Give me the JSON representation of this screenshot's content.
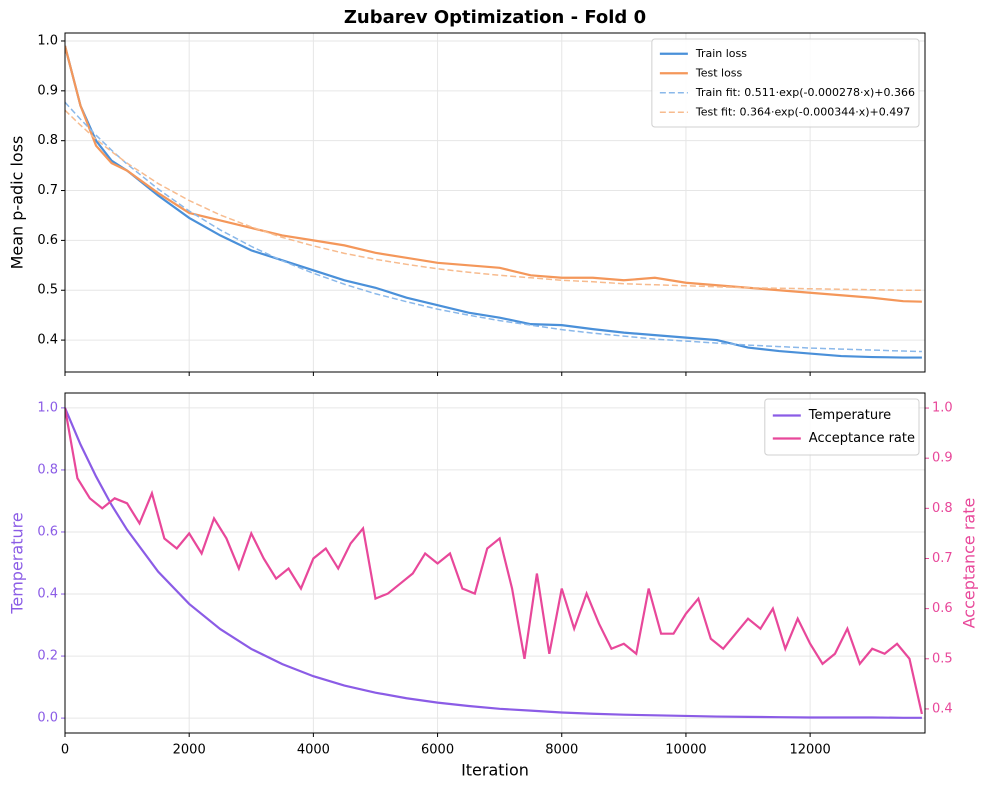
{
  "chart_data": [
    {
      "type": "line",
      "title": "Zubarev Optimization - Fold 0",
      "ylabel": "Mean p-adic loss",
      "x": [
        0,
        250,
        500,
        750,
        1000,
        1500,
        2000,
        2500,
        3000,
        3500,
        4000,
        4500,
        5000,
        5500,
        6000,
        6500,
        7000,
        7500,
        8000,
        8500,
        9000,
        9500,
        10000,
        10500,
        11000,
        11500,
        12000,
        12500,
        13000,
        13500,
        13800
      ],
      "series": [
        {
          "name": "Train loss",
          "color": "#4a90d9",
          "style": "solid",
          "values": [
            0.99,
            0.87,
            0.8,
            0.76,
            0.74,
            0.69,
            0.645,
            0.61,
            0.58,
            0.56,
            0.54,
            0.52,
            0.505,
            0.485,
            0.47,
            0.455,
            0.445,
            0.432,
            0.43,
            0.422,
            0.415,
            0.41,
            0.405,
            0.4,
            0.385,
            0.378,
            0.373,
            0.368,
            0.366,
            0.365,
            0.365
          ]
        },
        {
          "name": "Test loss",
          "color": "#f4975a",
          "style": "solid",
          "values": [
            0.99,
            0.87,
            0.79,
            0.755,
            0.74,
            0.695,
            0.655,
            0.64,
            0.625,
            0.61,
            0.6,
            0.59,
            0.575,
            0.565,
            0.555,
            0.55,
            0.545,
            0.53,
            0.525,
            0.525,
            0.52,
            0.525,
            0.515,
            0.51,
            0.505,
            0.5,
            0.495,
            0.49,
            0.485,
            0.478,
            0.477
          ]
        },
        {
          "name": "Train fit: 0.511·exp(-0.000278·x)+0.366",
          "color": "#8ab8ea",
          "style": "dashed",
          "values": [
            0.877,
            0.843,
            0.811,
            0.781,
            0.753,
            0.703,
            0.659,
            0.621,
            0.588,
            0.559,
            0.534,
            0.512,
            0.493,
            0.477,
            0.462,
            0.45,
            0.439,
            0.43,
            0.421,
            0.414,
            0.408,
            0.402,
            0.398,
            0.394,
            0.39,
            0.387,
            0.384,
            0.382,
            0.38,
            0.378,
            0.377
          ]
        },
        {
          "name": "Test fit: 0.364·exp(-0.000344·x)+0.497",
          "color": "#f7bb8e",
          "style": "dashed",
          "values": [
            0.861,
            0.831,
            0.803,
            0.778,
            0.755,
            0.714,
            0.68,
            0.651,
            0.627,
            0.606,
            0.589,
            0.574,
            0.562,
            0.552,
            0.543,
            0.536,
            0.53,
            0.525,
            0.52,
            0.517,
            0.513,
            0.511,
            0.509,
            0.507,
            0.505,
            0.504,
            0.503,
            0.502,
            0.501,
            0.5,
            0.5
          ]
        }
      ],
      "xlim": [
        0,
        13850
      ],
      "ylim": [
        0.336,
        1.016
      ],
      "yticks": [
        0.4,
        0.5,
        0.6,
        0.7,
        0.8,
        0.9,
        {
          "value": 1,
          "label": "1.0"
        }
      ],
      "grid": true,
      "legend": "upper right"
    },
    {
      "type": "line",
      "xlabel": "Iteration",
      "ylabel": "Temperature",
      "y2label": "Acceptance rate",
      "x": [
        0,
        250,
        500,
        750,
        1000,
        1500,
        2000,
        2500,
        3000,
        3500,
        4000,
        4500,
        5000,
        5500,
        6000,
        6500,
        7000,
        7500,
        8000,
        8500,
        9000,
        9500,
        10000,
        10500,
        11000,
        11500,
        12000,
        12500,
        13000,
        13500,
        13800
      ],
      "series": [
        {
          "name": "Temperature",
          "color": "#8b5ce6",
          "style": "solid",
          "values": [
            1,
            0.882,
            0.779,
            0.687,
            0.607,
            0.472,
            0.368,
            0.287,
            0.223,
            0.174,
            0.135,
            0.105,
            0.082,
            0.064,
            0.05,
            0.039,
            0.03,
            0.024,
            0.018,
            0.014,
            0.011,
            0.009,
            0.007,
            0.005,
            0.004,
            0.003,
            0.002,
            0.002,
            0.002,
            0.001,
            0.001
          ]
        },
        {
          "name": "Acceptance rate",
          "color": "#e8489a",
          "style": "solid",
          "axis": "y2",
          "x": [
            0,
            200,
            400,
            600,
            800,
            1000,
            1200,
            1400,
            1600,
            1800,
            2000,
            2200,
            2400,
            2600,
            2800,
            3000,
            3200,
            3400,
            3600,
            3800,
            4000,
            4200,
            4400,
            4600,
            4800,
            5000,
            5200,
            5400,
            5600,
            5800,
            6000,
            6200,
            6400,
            6600,
            6800,
            7000,
            7200,
            7400,
            7600,
            7800,
            8000,
            8200,
            8400,
            8600,
            8800,
            9000,
            9200,
            9400,
            9600,
            9800,
            10000,
            10200,
            10400,
            10600,
            10800,
            11000,
            11200,
            11400,
            11600,
            11800,
            12000,
            12200,
            12400,
            12600,
            12800,
            13000,
            13200,
            13400,
            13600,
            13800
          ],
          "values": [
            1.0,
            0.86,
            0.82,
            0.8,
            0.82,
            0.81,
            0.77,
            0.83,
            0.74,
            0.72,
            0.75,
            0.71,
            0.78,
            0.74,
            0.68,
            0.75,
            0.7,
            0.66,
            0.68,
            0.64,
            0.7,
            0.72,
            0.68,
            0.73,
            0.76,
            0.62,
            0.63,
            0.65,
            0.67,
            0.71,
            0.69,
            0.71,
            0.64,
            0.63,
            0.72,
            0.74,
            0.64,
            0.5,
            0.67,
            0.51,
            0.64,
            0.56,
            0.63,
            0.57,
            0.52,
            0.53,
            0.51,
            0.64,
            0.55,
            0.55,
            0.59,
            0.62,
            0.54,
            0.52,
            0.55,
            0.58,
            0.56,
            0.6,
            0.52,
            0.58,
            0.53,
            0.49,
            0.51,
            0.56,
            0.49,
            0.52,
            0.51,
            0.53,
            0.5,
            0.39
          ]
        }
      ],
      "xlim": [
        0,
        13850
      ],
      "xticks": [
        0,
        2000,
        4000,
        6000,
        8000,
        10000,
        12000
      ],
      "ylim": [
        -0.048,
        1.048
      ],
      "yticks": [
        {
          "value": 0,
          "label": "0.0"
        },
        0.2,
        0.4,
        0.6,
        0.8,
        {
          "value": 1,
          "label": "1.0"
        }
      ],
      "y2lim": [
        0.352,
        1.03
      ],
      "y2ticks": [
        0.4,
        0.5,
        0.6,
        0.7,
        0.8,
        0.9,
        {
          "value": 1,
          "label": "1.0"
        }
      ],
      "grid": true,
      "legend": "upper right"
    }
  ]
}
